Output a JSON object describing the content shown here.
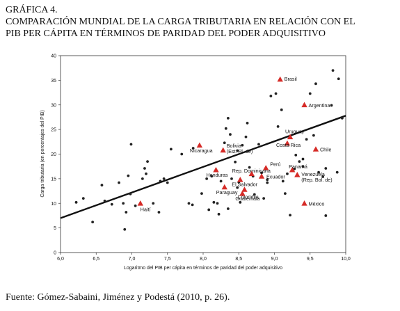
{
  "header": {
    "label": "GRÁFICA 4.",
    "title_line1": "COMPARACIÓN MUNDIAL DE LA CARGA TRIBUTARIA EN RELACIÓN CON EL",
    "title_line2": "PIB PER CÁPITA EN TÉRMINOS DE PARIDAD DEL PODER ADQUISITIVO"
  },
  "source": "Fuente: Gómez-Sabaini, Jiménez y Podestá (2010, p. 26).",
  "chart_data": {
    "type": "scatter",
    "title": "COMPARACIÓN MUNDIAL DE LA CARGA TRIBUTARIA EN RELACIÓN CON EL PIB PER CÁPITA EN TÉRMINOS DE PARIDAD DEL PODER ADQUISITIVO",
    "xlabel": "Logaritmo del PIB per cápita en términos de paridad del poder adquisitivo",
    "ylabel": "Carga tributaria (en porcentajes del PIB)",
    "xlim": [
      6.0,
      10.0
    ],
    "ylim": [
      0,
      40
    ],
    "xticks": [
      "6,0",
      "6,5",
      "7,0",
      "7,5",
      "8,0",
      "8,5",
      "9,0",
      "9,5",
      "10,0"
    ],
    "yticks": [
      "0",
      "5",
      "10",
      "15",
      "20",
      "25",
      "30",
      "35",
      "40"
    ],
    "grid": false,
    "trend_line": {
      "x": [
        6.0,
        10.0
      ],
      "y": [
        7.0,
        27.8
      ]
    },
    "series": [
      {
        "marker": "triangle",
        "color": "#d62b27",
        "points": [
          {
            "label": "Brasil",
            "x": 9.08,
            "y": 35.2
          },
          {
            "label": "Argentina",
            "x": 9.42,
            "y": 30.0
          },
          {
            "label": "Uruguay",
            "x": 9.22,
            "y": 23.5
          },
          {
            "label": "Costa Rica",
            "x": 9.18,
            "y": 22.2
          },
          {
            "label": "Chile",
            "x": 9.58,
            "y": 21.0
          },
          {
            "label": "Nicaragua",
            "x": 7.95,
            "y": 21.8
          },
          {
            "label": "Bolivia (Est. Pl. de)",
            "x": 8.28,
            "y": 20.8
          },
          {
            "label": "Perú",
            "x": 8.88,
            "y": 17.2
          },
          {
            "label": "Honduras",
            "x": 8.18,
            "y": 16.8
          },
          {
            "label": "Rep. Dominicana",
            "x": 8.68,
            "y": 16.0
          },
          {
            "label": "Ecuador",
            "x": 8.82,
            "y": 15.5
          },
          {
            "label": "Panamá",
            "x": 9.25,
            "y": 16.8
          },
          {
            "label": "Venezuela (Rep. Bol. de)",
            "x": 9.32,
            "y": 15.8
          },
          {
            "label": "El Salvador",
            "x": 8.52,
            "y": 14.8
          },
          {
            "label": "Paraguay",
            "x": 8.3,
            "y": 13.3
          },
          {
            "label": "Colombia",
            "x": 8.58,
            "y": 12.8
          },
          {
            "label": "Guatemala",
            "x": 8.55,
            "y": 12.0
          },
          {
            "label": "México",
            "x": 9.42,
            "y": 10.0
          },
          {
            "label": "Haití",
            "x": 7.12,
            "y": 10.0
          }
        ]
      },
      {
        "marker": "circle",
        "points": [
          [
            6.22,
            10.2
          ],
          [
            6.32,
            11.0
          ],
          [
            6.45,
            6.2
          ],
          [
            6.58,
            13.7
          ],
          [
            6.62,
            10.5
          ],
          [
            6.72,
            9.8
          ],
          [
            6.82,
            14.2
          ],
          [
            6.88,
            10.0
          ],
          [
            6.95,
            15.6
          ],
          [
            6.98,
            11.9
          ],
          [
            6.99,
            22.0
          ],
          [
            6.92,
            8.2
          ],
          [
            6.9,
            4.7
          ],
          [
            7.05,
            9.5
          ],
          [
            7.22,
            18.5
          ],
          [
            7.18,
            17.1
          ],
          [
            7.2,
            16.0
          ],
          [
            7.15,
            15.0
          ],
          [
            7.3,
            10.0
          ],
          [
            7.38,
            8.2
          ],
          [
            7.4,
            14.5
          ],
          [
            7.45,
            15.0
          ],
          [
            7.5,
            14.2
          ],
          [
            7.55,
            21.0
          ],
          [
            7.7,
            20.0
          ],
          [
            7.8,
            10.0
          ],
          [
            7.85,
            9.7
          ],
          [
            7.86,
            21.2
          ],
          [
            7.98,
            12.0
          ],
          [
            8.05,
            15.0
          ],
          [
            8.08,
            8.7
          ],
          [
            8.12,
            15.5
          ],
          [
            8.15,
            10.2
          ],
          [
            8.2,
            10.0
          ],
          [
            8.22,
            7.8
          ],
          [
            8.25,
            14.5
          ],
          [
            8.3,
            22.3
          ],
          [
            8.32,
            25.2
          ],
          [
            8.35,
            27.3
          ],
          [
            8.38,
            24.0
          ],
          [
            8.4,
            15.0
          ],
          [
            8.45,
            18.4
          ],
          [
            8.48,
            13.2
          ],
          [
            8.5,
            14.3
          ],
          [
            8.52,
            10.2
          ],
          [
            8.55,
            21.8
          ],
          [
            8.6,
            23.5
          ],
          [
            8.62,
            26.3
          ],
          [
            8.65,
            17.3
          ],
          [
            8.7,
            15.5
          ],
          [
            8.72,
            11.8
          ],
          [
            8.78,
            22.0
          ],
          [
            8.82,
            16.2
          ],
          [
            8.85,
            11.0
          ],
          [
            8.9,
            14.2
          ],
          [
            8.95,
            31.8
          ],
          [
            9.02,
            32.3
          ],
          [
            9.05,
            25.6
          ],
          [
            9.1,
            29.0
          ],
          [
            9.15,
            12.0
          ],
          [
            9.18,
            16.0
          ],
          [
            9.22,
            7.6
          ],
          [
            9.28,
            17.0
          ],
          [
            9.3,
            19.8
          ],
          [
            9.35,
            18.5
          ],
          [
            9.4,
            17.5
          ],
          [
            9.45,
            23.0
          ],
          [
            9.5,
            32.3
          ],
          [
            9.55,
            23.8
          ],
          [
            9.58,
            34.3
          ],
          [
            9.62,
            16.3
          ],
          [
            9.68,
            15.4
          ],
          [
            9.72,
            17.1
          ],
          [
            9.72,
            7.5
          ],
          [
            9.8,
            29.9
          ],
          [
            9.82,
            37.0
          ],
          [
            9.88,
            16.3
          ],
          [
            9.9,
            35.3
          ],
          [
            9.95,
            27.3
          ],
          [
            8.35,
            8.9
          ],
          [
            8.9,
            14.8
          ],
          [
            8.48,
            20.7
          ],
          [
            9.12,
            14.5
          ],
          [
            9.4,
            19.0
          ]
        ]
      }
    ]
  }
}
